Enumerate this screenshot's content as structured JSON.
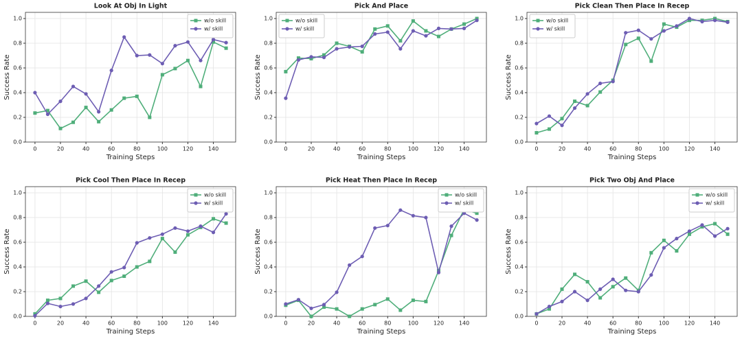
{
  "chart_data": [
    {
      "type": "line",
      "title": "Look At Obj In Light",
      "x_label": "Training Steps",
      "y_label": "Success Rate",
      "x": [
        0,
        10,
        20,
        30,
        40,
        50,
        60,
        70,
        80,
        90,
        100,
        110,
        120,
        130,
        140,
        150
      ],
      "series": [
        {
          "name": "w/o skill",
          "color": "#4fae7a",
          "marker": "square",
          "values": [
            0.235,
            0.255,
            0.11,
            0.16,
            0.28,
            0.165,
            0.26,
            0.355,
            0.37,
            0.2,
            0.545,
            0.595,
            0.66,
            0.45,
            0.81,
            0.76
          ]
        },
        {
          "name": "w/ skill",
          "color": "#6d5db3",
          "marker": "circle",
          "values": [
            0.4,
            0.225,
            0.33,
            0.45,
            0.39,
            0.245,
            0.58,
            0.85,
            0.7,
            0.705,
            0.635,
            0.78,
            0.81,
            0.66,
            0.83,
            0.805
          ]
        }
      ],
      "xlim": [
        -7.5,
        157.5
      ],
      "ylim": [
        0,
        1.05
      ],
      "xticks": [
        0,
        20,
        40,
        60,
        80,
        100,
        120,
        140
      ],
      "yticks": [
        {
          "value": 0,
          "label": "0.0"
        },
        0.2,
        0.4,
        0.6,
        0.8,
        {
          "value": 1,
          "label": "1.0"
        }
      ],
      "grid": true,
      "legend": "upper right"
    },
    {
      "type": "line",
      "title": "Pick And Place",
      "x_label": "Training Steps",
      "y_label": "Success Rate",
      "x": [
        0,
        10,
        20,
        30,
        40,
        50,
        60,
        70,
        80,
        90,
        100,
        110,
        120,
        130,
        140,
        150
      ],
      "series": [
        {
          "name": "w/o skill",
          "color": "#4fae7a",
          "marker": "square",
          "values": [
            0.57,
            0.68,
            0.675,
            0.705,
            0.8,
            0.775,
            0.73,
            0.915,
            0.94,
            0.82,
            0.98,
            0.9,
            0.855,
            0.915,
            0.955,
            1.0
          ]
        },
        {
          "name": "w/ skill",
          "color": "#6d5db3",
          "marker": "circle",
          "values": [
            0.355,
            0.665,
            0.69,
            0.685,
            0.755,
            0.77,
            0.775,
            0.875,
            0.89,
            0.755,
            0.9,
            0.86,
            0.92,
            0.915,
            0.92,
            0.985
          ]
        }
      ],
      "xlim": [
        -7.5,
        157.5
      ],
      "ylim": [
        0,
        1.05
      ],
      "xticks": [
        0,
        20,
        40,
        60,
        80,
        100,
        120,
        140
      ],
      "yticks": [
        {
          "value": 0,
          "label": "0.0"
        },
        0.2,
        0.4,
        0.6,
        0.8,
        {
          "value": 1,
          "label": "1.0"
        }
      ],
      "grid": true,
      "legend": "upper left"
    },
    {
      "type": "line",
      "title": "Pick Clean Then Place In Recep",
      "x_label": "Training Steps",
      "y_label": "Success Rate",
      "x": [
        0,
        10,
        20,
        30,
        40,
        50,
        60,
        70,
        80,
        90,
        100,
        110,
        120,
        130,
        140,
        150
      ],
      "series": [
        {
          "name": "w/o skill",
          "color": "#4fae7a",
          "marker": "square",
          "values": [
            0.075,
            0.105,
            0.19,
            0.33,
            0.295,
            0.405,
            0.5,
            0.79,
            0.84,
            0.655,
            0.955,
            0.93,
            0.985,
            0.985,
            1.0,
            0.975
          ]
        },
        {
          "name": "w/ skill",
          "color": "#6d5db3",
          "marker": "circle",
          "values": [
            0.15,
            0.21,
            0.135,
            0.275,
            0.39,
            0.475,
            0.49,
            0.885,
            0.905,
            0.835,
            0.9,
            0.94,
            1.0,
            0.975,
            0.985,
            0.97
          ]
        }
      ],
      "xlim": [
        -7.5,
        157.5
      ],
      "ylim": [
        0,
        1.05
      ],
      "xticks": [
        0,
        20,
        40,
        60,
        80,
        100,
        120,
        140
      ],
      "yticks": [
        {
          "value": 0,
          "label": "0.0"
        },
        0.2,
        0.4,
        0.6,
        0.8,
        {
          "value": 1,
          "label": "1.0"
        }
      ],
      "grid": true,
      "legend": "upper left"
    },
    {
      "type": "line",
      "title": "Pick Cool Then Place In Recep",
      "x_label": "Training Steps",
      "y_label": "Success Rate",
      "x": [
        0,
        10,
        20,
        30,
        40,
        50,
        60,
        70,
        80,
        90,
        100,
        110,
        120,
        130,
        140,
        150
      ],
      "series": [
        {
          "name": "w/o skill",
          "color": "#4fae7a",
          "marker": "square",
          "values": [
            0.02,
            0.13,
            0.145,
            0.245,
            0.285,
            0.195,
            0.29,
            0.325,
            0.4,
            0.445,
            0.63,
            0.52,
            0.66,
            0.72,
            0.79,
            0.755
          ]
        },
        {
          "name": "w/ skill",
          "color": "#6d5db3",
          "marker": "circle",
          "values": [
            0.005,
            0.105,
            0.08,
            0.1,
            0.145,
            0.245,
            0.36,
            0.395,
            0.595,
            0.635,
            0.665,
            0.715,
            0.69,
            0.73,
            0.68,
            0.83
          ]
        }
      ],
      "xlim": [
        -7.5,
        157.5
      ],
      "ylim": [
        0,
        1.05
      ],
      "xticks": [
        0,
        20,
        40,
        60,
        80,
        100,
        120,
        140
      ],
      "yticks": [
        {
          "value": 0,
          "label": "0.0"
        },
        0.2,
        0.4,
        0.6,
        0.8,
        {
          "value": 1,
          "label": "1.0"
        }
      ],
      "grid": true,
      "legend": "upper right"
    },
    {
      "type": "line",
      "title": "Pick Heat Then Place In Recep",
      "x_label": "Training Steps",
      "y_label": "Success Rate",
      "x": [
        0,
        10,
        20,
        30,
        40,
        50,
        60,
        70,
        80,
        90,
        100,
        110,
        120,
        130,
        140,
        150
      ],
      "series": [
        {
          "name": "w/o skill",
          "color": "#4fae7a",
          "marker": "square",
          "values": [
            0.09,
            0.13,
            0.0,
            0.075,
            0.06,
            0.0,
            0.06,
            0.095,
            0.14,
            0.05,
            0.13,
            0.12,
            0.37,
            0.655,
            0.865,
            0.835
          ]
        },
        {
          "name": "w/ skill",
          "color": "#6d5db3",
          "marker": "circle",
          "values": [
            0.1,
            0.135,
            0.065,
            0.095,
            0.195,
            0.415,
            0.485,
            0.715,
            0.735,
            0.86,
            0.815,
            0.8,
            0.355,
            0.73,
            0.835,
            0.78
          ]
        }
      ],
      "xlim": [
        -7.5,
        157.5
      ],
      "ylim": [
        0,
        1.05
      ],
      "xticks": [
        0,
        20,
        40,
        60,
        80,
        100,
        120,
        140
      ],
      "yticks": [
        {
          "value": 0,
          "label": "0.0"
        },
        0.2,
        0.4,
        0.6,
        0.8,
        {
          "value": 1,
          "label": "1.0"
        }
      ],
      "grid": true,
      "legend": "upper right"
    },
    {
      "type": "line",
      "title": "Pick Two Obj And Place",
      "x_label": "Training Steps",
      "y_label": "Success Rate",
      "x": [
        0,
        10,
        20,
        30,
        40,
        50,
        60,
        70,
        80,
        90,
        100,
        110,
        120,
        130,
        140,
        150
      ],
      "series": [
        {
          "name": "w/o skill",
          "color": "#4fae7a",
          "marker": "square",
          "values": [
            0.02,
            0.06,
            0.22,
            0.34,
            0.28,
            0.15,
            0.24,
            0.31,
            0.21,
            0.515,
            0.615,
            0.53,
            0.665,
            0.725,
            0.75,
            0.665
          ]
        },
        {
          "name": "w/ skill",
          "color": "#6d5db3",
          "marker": "circle",
          "values": [
            0.02,
            0.08,
            0.12,
            0.2,
            0.13,
            0.22,
            0.3,
            0.21,
            0.2,
            0.335,
            0.555,
            0.63,
            0.69,
            0.74,
            0.65,
            0.71
          ]
        }
      ],
      "xlim": [
        -7.5,
        157.5
      ],
      "ylim": [
        0,
        1.05
      ],
      "xticks": [
        0,
        20,
        40,
        60,
        80,
        100,
        120,
        140
      ],
      "yticks": [
        {
          "value": 0,
          "label": "0.0"
        },
        0.2,
        0.4,
        0.6,
        0.8,
        {
          "value": 1,
          "label": "1.0"
        }
      ],
      "grid": true,
      "legend": "upper right"
    }
  ]
}
